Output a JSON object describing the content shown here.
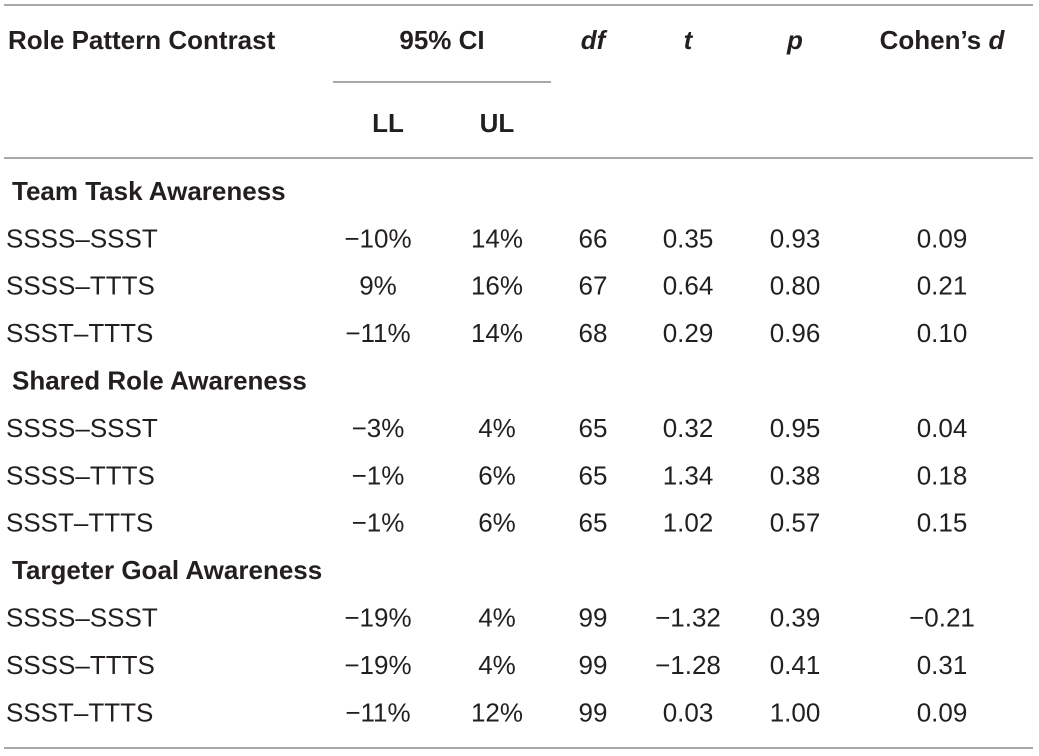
{
  "table": {
    "header": [
      "Role Pattern Contrast",
      "95% CI",
      "df",
      "t",
      "p"
    ],
    "effect_header": {
      "prefix": "Cohen’s",
      "symbol": "d"
    },
    "subheader": [
      "LL",
      "UL"
    ],
    "groups": [
      {
        "title": "Team Task Awareness",
        "rows": [
          [
            "SSSS–SSST",
            "−10%",
            "14%",
            "66",
            "0.35",
            "0.93",
            "0.09"
          ],
          [
            "SSSS–TTTS",
            "9%",
            "16%",
            "67",
            "0.64",
            "0.80",
            "0.21"
          ],
          [
            "SSST–TTTS",
            "−11%",
            "14%",
            "68",
            "0.29",
            "0.96",
            "0.10"
          ]
        ]
      },
      {
        "title": "Shared Role Awareness",
        "rows": [
          [
            "SSSS–SSST",
            "−3%",
            "4%",
            "65",
            "0.32",
            "0.95",
            "0.04"
          ],
          [
            "SSSS–TTTS",
            "−1%",
            "6%",
            "65",
            "1.34",
            "0.38",
            "0.18"
          ],
          [
            "SSST–TTTS",
            "−1%",
            "6%",
            "65",
            "1.02",
            "0.57",
            "0.15"
          ]
        ]
      },
      {
        "title": "Targeter Goal Awareness",
        "rows": [
          [
            "SSSS–SSST",
            "−19%",
            "4%",
            "99",
            "−1.32",
            "0.39",
            "−0.21"
          ],
          [
            "SSSS–TTTS",
            "−19%",
            "4%",
            "99",
            "−1.28",
            "0.41",
            "0.31"
          ],
          [
            "SSST–TTTS",
            "−11%",
            "12%",
            "99",
            "0.03",
            "1.00",
            "0.09"
          ]
        ]
      }
    ]
  }
}
